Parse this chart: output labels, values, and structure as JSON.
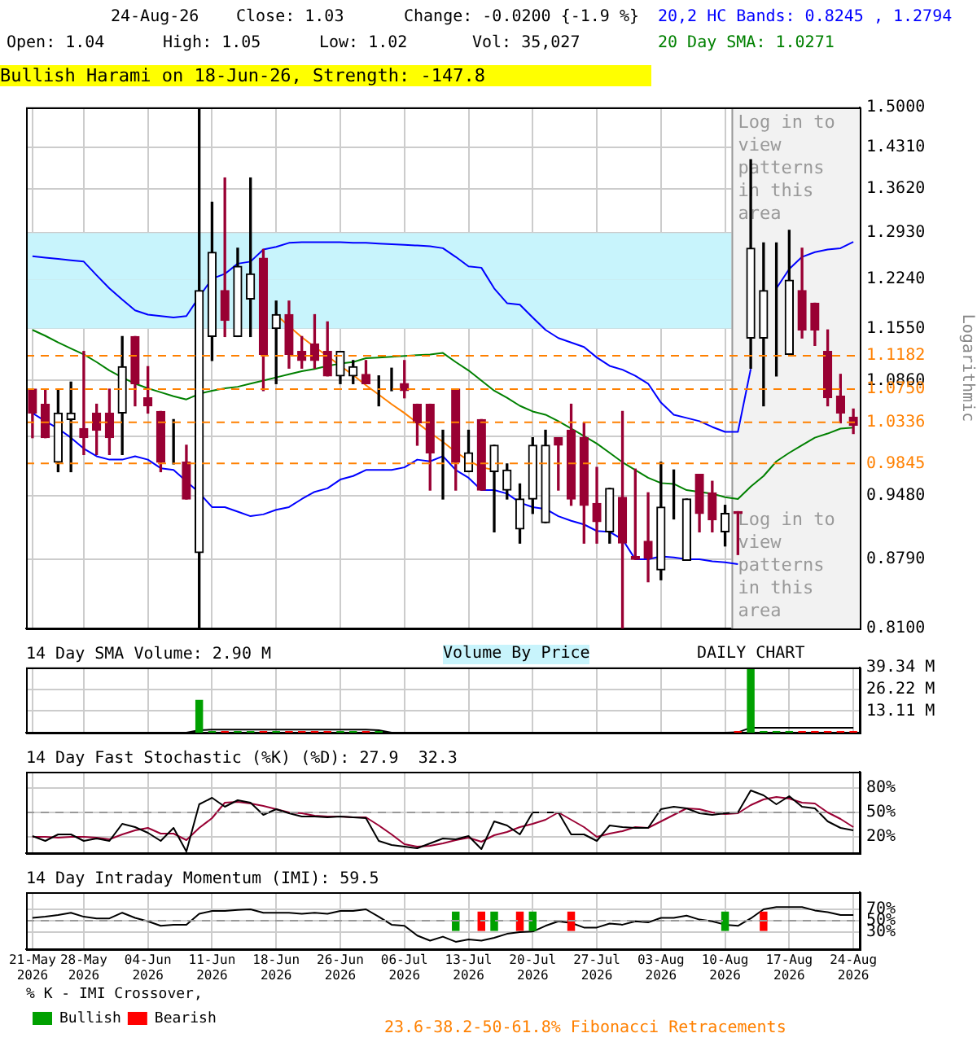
{
  "chart_data": [
    {
      "type": "candlestick",
      "ylabel": "Logarithmic",
      "log": true,
      "grid": true,
      "tick_labels": "y",
      "annotations": [
        "24-Aug-26",
        "Close: 1.03",
        "Change: -0.0200 {-1.9 %}",
        "Open: 1.04",
        "High: 1.05",
        "Low: 1.02",
        "Vol: 35,027",
        "20,2 HC Bands: 0.8245 , 1.2794",
        "20 Day SMA: 1.0271",
        "Bullish Harami on 18-Jun-26, Strength: -147.8",
        "23.6-38.2-50-61.8% Fibonacci Retracements"
      ],
      "categories": [
        "21-May 2026",
        null,
        null,
        null,
        "28-May 2026",
        null,
        null,
        null,
        null,
        "04-Jun 2026",
        null,
        null,
        null,
        null,
        "11-Jun 2026",
        null,
        null,
        null,
        null,
        "18-Jun 2026",
        null,
        null,
        null,
        null,
        "26-Jun 2026",
        null,
        null,
        null,
        null,
        "06-Jul 2026",
        null,
        null,
        null,
        null,
        "13-Jul 2026",
        null,
        null,
        null,
        null,
        "20-Jul 2026",
        null,
        null,
        null,
        null,
        "27-Jul 2026",
        null,
        null,
        null,
        null,
        "03-Aug 2026",
        null,
        null,
        null,
        null,
        "10-Aug 2026",
        null,
        null,
        null,
        null,
        "17-Aug 2026",
        null,
        null,
        null,
        null,
        "24-Aug 2026"
      ],
      "ohlc": [
        [
          1.075,
          1.075,
          1.015,
          1.045
        ],
        [
          1.056,
          1.075,
          1.015,
          1.015
        ],
        [
          0.986,
          1.075,
          0.975,
          1.045
        ],
        [
          1.037,
          1.084,
          0.975,
          1.045
        ],
        [
          1.026,
          1.124,
          0.995,
          1.015
        ],
        [
          1.045,
          1.056,
          0.995,
          1.024
        ],
        [
          1.045,
          1.075,
          0.995,
          1.015
        ],
        [
          1.045,
          1.144,
          0.995,
          1.104
        ],
        [
          1.144,
          1.144,
          1.054,
          1.082
        ],
        [
          1.064,
          1.104,
          1.045,
          1.054
        ],
        [
          1.047,
          1.047,
          0.975,
          0.986
        ],
        [
          1.016,
          1.037,
          0.984,
          1.016
        ],
        [
          0.986,
          1.006,
          0.944,
          0.944
        ],
        [
          0.886,
          1.5,
          0.81,
          1.208
        ],
        [
          1.144,
          1.341,
          1.112,
          1.264
        ],
        [
          1.208,
          1.38,
          1.144,
          1.166
        ],
        [
          1.144,
          1.27,
          1.144,
          1.243
        ],
        [
          1.196,
          1.38,
          1.144,
          1.232
        ],
        [
          1.255,
          1.268,
          1.073,
          1.12
        ],
        [
          1.155,
          1.193,
          1.082,
          1.174
        ],
        [
          1.174,
          1.193,
          1.102,
          1.12
        ],
        [
          1.124,
          1.144,
          1.102,
          1.112
        ],
        [
          1.134,
          1.174,
          1.102,
          1.112
        ],
        [
          1.124,
          1.164,
          1.092,
          1.092
        ],
        [
          1.092,
          1.124,
          1.082,
          1.124
        ],
        [
          1.092,
          1.112,
          1.082,
          1.104
        ],
        [
          1.094,
          1.112,
          1.082,
          1.082
        ],
        [
          1.092,
          1.092,
          1.054,
          1.092
        ],
        [
          1.092,
          1.102,
          1.073,
          1.092
        ],
        [
          1.082,
          1.112,
          1.064,
          1.073
        ],
        [
          1.056,
          1.056,
          1.006,
          1.033
        ],
        [
          1.056,
          1.056,
          0.954,
          0.997
        ],
        [
          0.997,
          1.024,
          0.944,
          0.997
        ],
        [
          1.075,
          1.075,
          0.954,
          0.986
        ],
        [
          0.975,
          1.024,
          0.975,
          0.997
        ],
        [
          1.037,
          1.037,
          0.954,
          0.954
        ],
        [
          0.975,
          1.006,
          0.908,
          1.006
        ],
        [
          0.954,
          0.984,
          0.944,
          0.977
        ],
        [
          0.911,
          0.961,
          0.896,
          0.944
        ],
        [
          0.944,
          1.015,
          0.928,
          1.006
        ],
        [
          0.918,
          1.024,
          0.918,
          1.006
        ],
        [
          1.015,
          1.015,
          0.954,
          1.006
        ],
        [
          1.024,
          1.056,
          0.937,
          0.944
        ],
        [
          1.015,
          1.033,
          0.896,
          0.937
        ],
        [
          0.939,
          0.98,
          0.896,
          0.919
        ],
        [
          0.908,
          0.956,
          0.896,
          0.956
        ],
        [
          0.946,
          1.047,
          0.81,
          0.896
        ],
        [
          0.882,
          0.978,
          0.879,
          0.879
        ],
        [
          0.898,
          0.951,
          0.856,
          0.88
        ],
        [
          0.868,
          0.986,
          0.858,
          0.935
        ],
        [
          0.944,
          0.977,
          0.922,
          0.944
        ],
        [
          0.878,
          0.944,
          0.878,
          0.944
        ],
        [
          0.972,
          0.972,
          0.908,
          0.928
        ],
        [
          0.951,
          0.964,
          0.908,
          0.921
        ],
        [
          0.908,
          0.937,
          0.893,
          0.928
        ],
        [
          0.93,
          0.93,
          0.884,
          0.928
        ],
        [
          1.142,
          1.41,
          1.102,
          1.27
        ],
        [
          1.142,
          1.278,
          1.054,
          1.208
        ],
        [
          1.155,
          1.278,
          1.092,
          1.155
        ],
        [
          1.12,
          1.297,
          1.12,
          1.223
        ],
        [
          1.208,
          1.27,
          1.142,
          1.153
        ],
        [
          1.19,
          1.19,
          1.132,
          1.153
        ],
        [
          1.124,
          1.153,
          1.054,
          1.064
        ],
        [
          1.066,
          1.094,
          1.033,
          1.045
        ],
        [
          1.04,
          1.05,
          1.02,
          1.03
        ]
      ],
      "colors": [
        "#990033",
        "#990033",
        "#000000",
        "#000000",
        "#990033",
        "#990033",
        "#990033",
        "#000000",
        "#990033",
        "#990033",
        "#990033",
        "#000000",
        "#990033",
        "#000000",
        "#000000",
        "#990033",
        "#000000",
        "#000000",
        "#990033",
        "#000000",
        "#990033",
        "#990033",
        "#990033",
        "#990033",
        "#000000",
        "#000000",
        "#990033",
        "#000000",
        "#000000",
        "#990033",
        "#990033",
        "#990033",
        "#000000",
        "#990033",
        "#000000",
        "#990033",
        "#000000",
        "#000000",
        "#000000",
        "#000000",
        "#000000",
        "#990033",
        "#990033",
        "#990033",
        "#990033",
        "#000000",
        "#990033",
        "#990033",
        "#990033",
        "#000000",
        "#000000",
        "#000000",
        "#990033",
        "#990033",
        "#000000",
        "#990033",
        "#000000",
        "#000000",
        "#000000",
        "#000000",
        "#990033",
        "#990033",
        "#990033",
        "#990033",
        "#990033"
      ],
      "series": [
        {
          "type": "line",
          "color": "#0000ff",
          "values": [
            1.258,
            1.256,
            1.254,
            1.252,
            1.25,
            1.23,
            1.211,
            1.195,
            1.18,
            1.174,
            1.172,
            1.17,
            1.172,
            1.199,
            1.225,
            1.232,
            1.247,
            1.25,
            1.268,
            1.272,
            1.278,
            1.279,
            1.279,
            1.279,
            1.279,
            1.278,
            1.278,
            1.277,
            1.276,
            1.275,
            1.274,
            1.273,
            1.27,
            1.257,
            1.243,
            1.241,
            1.211,
            1.19,
            1.188,
            1.17,
            1.153,
            1.142,
            1.136,
            1.13,
            1.116,
            1.105,
            1.1,
            1.092,
            1.082,
            1.058,
            1.043,
            1.039,
            1.035,
            1.028,
            1.022,
            1.022,
            1.101,
            null,
            1.211,
            1.239,
            1.257,
            1.264,
            1.268,
            1.27,
            1.2794
          ]
        },
        {
          "type": "line",
          "color": "#0000ff",
          "values": [
            1.045,
            1.035,
            1.026,
            1.015,
            1.002,
            0.993,
            0.989,
            0.989,
            0.993,
            0.989,
            0.979,
            0.977,
            0.964,
            0.951,
            0.935,
            0.935,
            0.93,
            0.925,
            0.927,
            0.932,
            0.935,
            0.944,
            0.952,
            0.956,
            0.966,
            0.97,
            0.977,
            0.977,
            0.977,
            0.98,
            0.989,
            0.987,
            0.993,
            0.977,
            0.968,
            0.954,
            0.954,
            0.95,
            0.94,
            0.935,
            0.933,
            0.925,
            0.92,
            0.916,
            0.909,
            0.908,
            0.9,
            0.879,
            0.879,
            0.882,
            0.881,
            0.879,
            0.879,
            0.877,
            0.876,
            0.874,
            null,
            null,
            null,
            null,
            null,
            null,
            null,
            null,
            null
          ]
        },
        {
          "type": "line",
          "color": "#008000",
          "values": [
            1.153,
            1.145,
            1.136,
            1.128,
            1.12,
            1.11,
            1.099,
            1.09,
            1.082,
            1.076,
            1.071,
            1.066,
            1.062,
            1.069,
            1.073,
            1.076,
            1.078,
            1.082,
            1.086,
            1.09,
            1.094,
            1.098,
            1.101,
            1.105,
            1.108,
            1.11,
            1.115,
            1.116,
            1.117,
            1.118,
            1.119,
            1.12,
            1.122,
            1.11,
            1.099,
            1.086,
            1.073,
            1.064,
            1.054,
            1.047,
            1.043,
            1.035,
            1.026,
            1.017,
            1.008,
            0.997,
            0.986,
            0.977,
            0.968,
            0.962,
            0.961,
            0.954,
            0.952,
            0.95,
            0.946,
            0.944,
            0.958,
            0.97,
            0.987,
            0.997,
            1.006,
            1.015,
            1.02,
            1.026,
            1.0271
          ]
        },
        {
          "type": "line",
          "color": "#ff8000",
          "values": [
            null,
            null,
            null,
            null,
            null,
            null,
            null,
            null,
            null,
            null,
            null,
            null,
            null,
            null,
            null,
            null,
            null,
            null,
            null,
            1.174,
            1.158,
            1.143,
            1.13,
            1.118,
            1.105,
            1.093,
            1.08,
            1.068,
            1.056,
            1.045,
            1.033,
            1.021,
            1.01,
            0.998,
            0.988,
            0.98,
            0.977,
            null,
            null,
            null,
            null,
            null,
            null,
            null,
            null,
            null,
            null,
            null,
            null,
            null,
            null,
            null,
            null,
            null,
            null,
            null,
            null,
            null,
            null,
            null,
            null,
            null,
            null,
            null,
            null
          ]
        }
      ],
      "ylim": [
        0.81,
        1.5
      ],
      "yticks": [
        {
          "value": 0.81,
          "label": "0.8100"
        },
        {
          "value": 0.879,
          "label": "0.8790"
        },
        {
          "value": 0.948,
          "label": "0.9480"
        },
        {
          "value": 1.017,
          "label": null
        },
        {
          "value": 1.086,
          "label": "1.0860"
        },
        {
          "value": 1.155,
          "label": "1.1550"
        },
        {
          "value": 1.224,
          "label": "1.2240"
        },
        {
          "value": 1.293,
          "label": "1.2930"
        },
        {
          "value": 1.362,
          "label": "1.3620"
        },
        {
          "value": 1.431,
          "label": "1.4310"
        },
        {
          "value": 1.5,
          "label": "1.5000"
        }
      ],
      "ref_lines": [
        {
          "axis": "y",
          "value": 1.1182,
          "label": "1.1182",
          "color": "#ff8000",
          "line_style": "dashed"
        },
        {
          "axis": "y",
          "value": 1.075,
          "label": "1.0750",
          "color": "#ff8000",
          "line_style": "dashed"
        },
        {
          "axis": "y",
          "value": 1.0336,
          "label": "1.0336",
          "color": "#ff8000",
          "line_style": "dashed"
        },
        {
          "axis": "y",
          "value": 0.9845,
          "label": "0.9845",
          "color": "#ff8000",
          "line_style": "dashed"
        }
      ],
      "bands": [
        {
          "axis": "y",
          "from": 1.224,
          "to": 1.293,
          "color": "#c8f4fc"
        },
        {
          "axis": "y",
          "from": 1.155,
          "to": 1.224,
          "color": "#c8f4fc"
        },
        {
          "axis": "x",
          "from": "10-Aug 2026",
          "to": "24-Aug 2026",
          "label": "Log in to view patterns in this area",
          "color": "#f2f2f2"
        }
      ]
    },
    {
      "type": "bar",
      "title": "14 Day SMA Volume: 2.90 M",
      "grid": true,
      "tick_labels": "y",
      "annotations": [
        "Volume By Price",
        "DAILY CHART"
      ],
      "categories": [
        "21-May 2026",
        null,
        null,
        null,
        "28-May 2026",
        null,
        null,
        null,
        null,
        "04-Jun 2026",
        null,
        null,
        null,
        null,
        "11-Jun 2026",
        null,
        null,
        null,
        null,
        "18-Jun 2026",
        null,
        null,
        null,
        null,
        "26-Jun 2026",
        null,
        null,
        null,
        null,
        "06-Jul 2026",
        null,
        null,
        null,
        null,
        "13-Jul 2026",
        null,
        null,
        null,
        null,
        "20-Jul 2026",
        null,
        null,
        null,
        null,
        "27-Jul 2026",
        null,
        null,
        null,
        null,
        "03-Aug 2026",
        null,
        null,
        null,
        null,
        "10-Aug 2026",
        null,
        null,
        null,
        null,
        "17-Aug 2026",
        null,
        null,
        null,
        null,
        "24-Aug 2026"
      ],
      "series": [
        {
          "colors": [
            "#ff0000",
            "#ff0000",
            "#00a000",
            "#00a000",
            "#ff0000",
            "#ff0000",
            "#ff0000",
            "#00a000",
            "#ff0000",
            "#ff0000",
            "#ff0000",
            "#00a000",
            "#ff0000",
            "#00a000",
            "#00a000",
            "#ff0000",
            "#00a000",
            "#00a000",
            "#ff0000",
            "#00a000",
            "#ff0000",
            "#ff0000",
            "#ff0000",
            "#ff0000",
            "#00a000",
            "#00a000",
            "#ff0000",
            "#00a000",
            "#00a000",
            "#ff0000",
            "#ff0000",
            "#ff0000",
            "#00a000",
            "#ff0000",
            "#00a000",
            "#ff0000",
            "#00a000",
            "#00a000",
            "#00a000",
            "#00a000",
            "#00a000",
            "#ff0000",
            "#ff0000",
            "#ff0000",
            "#ff0000",
            "#00a000",
            "#ff0000",
            "#ff0000",
            "#ff0000",
            "#00a000",
            "#00a000",
            "#00a000",
            "#ff0000",
            "#ff0000",
            "#00a000",
            "#ff0000",
            "#00a000",
            "#00a000",
            "#00a000",
            "#00a000",
            "#ff0000",
            "#ff0000",
            "#ff0000",
            "#ff0000",
            "#ff0000"
          ],
          "values": [
            null,
            null,
            null,
            null,
            null,
            null,
            null,
            null,
            null,
            null,
            null,
            null,
            null,
            19.8,
            1,
            1,
            1,
            1,
            1,
            1,
            1,
            1,
            1,
            1,
            1,
            1,
            1,
            1,
            null,
            null,
            null,
            null,
            null,
            null,
            null,
            null,
            null,
            null,
            null,
            null,
            null,
            null,
            null,
            null,
            null,
            null,
            null,
            null,
            null,
            null,
            null,
            null,
            null,
            null,
            null,
            1,
            39.34,
            1,
            1,
            1,
            1,
            1,
            1,
            1,
            1
          ]
        },
        {
          "type": "line",
          "color": "#000000",
          "values": [
            0,
            0,
            0,
            0,
            0,
            0,
            0,
            0,
            0,
            0,
            0,
            0,
            0,
            1.5,
            1.8,
            1.8,
            1.8,
            1.8,
            1.8,
            1.8,
            1.8,
            1.8,
            1.8,
            1.8,
            1.8,
            1.8,
            1.8,
            1.5,
            0,
            0,
            0,
            0,
            0,
            0,
            0,
            0,
            0,
            0,
            0,
            0,
            0,
            0,
            0,
            0,
            0,
            0,
            0,
            0,
            0,
            0,
            0,
            0,
            0,
            0,
            0,
            0.2,
            3,
            3,
            3,
            3,
            3,
            3,
            3,
            3,
            2.9
          ]
        }
      ],
      "ylim": [
        0,
        39.34
      ],
      "yticks": [
        {
          "value": 13.11,
          "label": "13.11 M"
        },
        {
          "value": 26.22,
          "label": "26.22 M"
        },
        {
          "value": 39.34,
          "label": "39.34 M"
        }
      ]
    },
    {
      "type": "line",
      "title": "14 Day Fast Stochastic (%K) (%D): 27.9  32.3",
      "grid": true,
      "tick_labels": "y",
      "categories": [
        "21-May 2026",
        null,
        null,
        null,
        "28-May 2026",
        null,
        null,
        null,
        null,
        "04-Jun 2026",
        null,
        null,
        null,
        null,
        "11-Jun 2026",
        null,
        null,
        null,
        null,
        "18-Jun 2026",
        null,
        null,
        null,
        null,
        "26-Jun 2026",
        null,
        null,
        null,
        null,
        "06-Jul 2026",
        null,
        null,
        null,
        null,
        "13-Jul 2026",
        null,
        null,
        null,
        null,
        "20-Jul 2026",
        null,
        null,
        null,
        null,
        "27-Jul 2026",
        null,
        null,
        null,
        null,
        "03-Aug 2026",
        null,
        null,
        null,
        null,
        "10-Aug 2026",
        null,
        null,
        null,
        null,
        "17-Aug 2026",
        null,
        null,
        null,
        null,
        "24-Aug 2026"
      ],
      "series": [
        {
          "color": "#000000",
          "values": [
            21,
            15,
            23,
            23,
            15,
            18,
            15,
            36,
            32,
            25,
            15,
            31,
            2,
            60,
            68,
            57,
            65,
            62,
            47,
            54,
            49,
            45,
            45,
            44,
            45,
            44,
            43,
            15,
            10,
            8,
            6,
            12,
            18,
            17,
            21,
            5,
            39,
            34,
            23,
            50,
            50,
            50,
            23,
            23,
            15,
            34,
            32,
            31,
            31,
            54,
            57,
            55,
            49,
            47,
            49,
            50,
            77,
            71,
            60,
            70,
            57,
            55,
            39,
            31,
            28
          ]
        },
        {
          "color": "#990033",
          "values": [
            20,
            20,
            19,
            20,
            20,
            19,
            17,
            23,
            28,
            31,
            24,
            24,
            16,
            31,
            43,
            62,
            63,
            61,
            58,
            54,
            50,
            49,
            46,
            45,
            45,
            44,
            44,
            34,
            23,
            11,
            8,
            9,
            12,
            16,
            19,
            14,
            22,
            26,
            32,
            36,
            41,
            50,
            41,
            32,
            20,
            24,
            27,
            32,
            31,
            39,
            47,
            55,
            54,
            50,
            48,
            49,
            59,
            66,
            69,
            67,
            62,
            61,
            50,
            42,
            32
          ]
        }
      ],
      "ylim": [
        0,
        100
      ],
      "yticks": [
        {
          "value": 20,
          "label": "20%"
        },
        {
          "value": 50,
          "label": "50%"
        },
        {
          "value": 80,
          "label": "80%"
        }
      ],
      "ref_lines": [
        {
          "axis": "y",
          "value": 50,
          "label": null,
          "color": "#999999",
          "line_style": "dashed"
        }
      ]
    },
    {
      "type": "line",
      "title": "14 Day Intraday Momentum (IMI): 59.5",
      "grid": true,
      "legend": "bottom left",
      "legend_title": "% K - IMI Crossover,",
      "categories": [
        "21-May 2026",
        null,
        null,
        null,
        "28-May 2026",
        null,
        null,
        null,
        null,
        "04-Jun 2026",
        null,
        null,
        null,
        null,
        "11-Jun 2026",
        null,
        null,
        null,
        null,
        "18-Jun 2026",
        null,
        null,
        null,
        null,
        "26-Jun 2026",
        null,
        null,
        null,
        null,
        "06-Jul 2026",
        null,
        null,
        null,
        null,
        "13-Jul 2026",
        null,
        null,
        null,
        null,
        "20-Jul 2026",
        null,
        null,
        null,
        null,
        "27-Jul 2026",
        null,
        null,
        null,
        null,
        "03-Aug 2026",
        null,
        null,
        null,
        null,
        "10-Aug 2026",
        null,
        null,
        null,
        null,
        "17-Aug 2026",
        null,
        null,
        null,
        null,
        "24-Aug 2026"
      ],
      "series": [
        {
          "color": "#000000",
          "values": [
            55,
            57,
            60,
            64,
            57,
            54,
            54,
            64,
            55,
            49,
            41,
            43,
            43,
            62,
            67,
            67,
            69,
            70,
            64,
            64,
            64,
            62,
            64,
            62,
            67,
            67,
            70,
            57,
            43,
            41,
            24,
            15,
            22,
            13,
            17,
            15,
            20,
            27,
            30,
            31,
            41,
            49,
            46,
            38,
            38,
            45,
            43,
            49,
            47,
            55,
            55,
            59,
            52,
            49,
            43,
            41,
            54,
            70,
            74,
            74,
            74,
            68,
            65,
            60,
            60
          ]
        },
        {
          "type": "bar",
          "name": "Bullish",
          "color": "#00a000",
          "values": [
            null,
            null,
            null,
            null,
            null,
            null,
            null,
            null,
            null,
            null,
            null,
            null,
            null,
            null,
            null,
            null,
            null,
            null,
            null,
            null,
            null,
            null,
            null,
            null,
            null,
            null,
            null,
            null,
            null,
            null,
            null,
            null,
            null,
            34,
            null,
            null,
            34,
            null,
            null,
            34,
            null,
            null,
            null,
            null,
            null,
            null,
            null,
            null,
            null,
            null,
            null,
            null,
            null,
            null,
            34,
            null,
            null,
            null,
            null,
            null,
            null,
            null,
            null,
            null,
            null
          ],
          "base": [
            null,
            null,
            null,
            null,
            null,
            null,
            null,
            null,
            null,
            null,
            null,
            null,
            null,
            null,
            null,
            null,
            null,
            null,
            null,
            null,
            null,
            null,
            null,
            null,
            null,
            null,
            null,
            null,
            null,
            null,
            null,
            null,
            null,
            32,
            null,
            null,
            32,
            null,
            null,
            32,
            null,
            null,
            null,
            null,
            null,
            null,
            null,
            null,
            null,
            null,
            null,
            null,
            null,
            null,
            32,
            null,
            null,
            null,
            null,
            null,
            null,
            null,
            null,
            null,
            null
          ]
        },
        {
          "type": "bar",
          "name": "Bearish",
          "color": "#ff0000",
          "values": [
            null,
            null,
            null,
            null,
            null,
            null,
            null,
            null,
            null,
            null,
            null,
            null,
            null,
            null,
            null,
            null,
            null,
            null,
            null,
            null,
            null,
            null,
            null,
            null,
            null,
            null,
            null,
            null,
            null,
            null,
            null,
            null,
            null,
            null,
            null,
            34,
            null,
            null,
            34,
            null,
            null,
            null,
            34,
            null,
            null,
            null,
            null,
            null,
            null,
            null,
            null,
            null,
            null,
            null,
            null,
            null,
            null,
            34,
            null,
            null,
            null,
            null,
            null,
            null,
            null
          ],
          "base": [
            null,
            null,
            null,
            null,
            null,
            null,
            null,
            null,
            null,
            null,
            null,
            null,
            null,
            null,
            null,
            null,
            null,
            null,
            null,
            null,
            null,
            null,
            null,
            null,
            null,
            null,
            null,
            null,
            null,
            null,
            null,
            null,
            null,
            null,
            null,
            32,
            null,
            null,
            32,
            null,
            null,
            null,
            32,
            null,
            null,
            null,
            null,
            null,
            null,
            null,
            null,
            null,
            null,
            null,
            null,
            null,
            null,
            32,
            null,
            null,
            null,
            null,
            null,
            null,
            null
          ]
        }
      ],
      "ylim": [
        0,
        100
      ],
      "yticks": [
        {
          "value": 30,
          "label": "30%"
        },
        {
          "value": 50,
          "label": "50%"
        },
        {
          "value": 70,
          "label": "70%"
        }
      ],
      "ref_lines": [
        {
          "axis": "y",
          "value": 50,
          "label": null,
          "color": "#999999",
          "line_style": "dashed"
        }
      ]
    }
  ]
}
